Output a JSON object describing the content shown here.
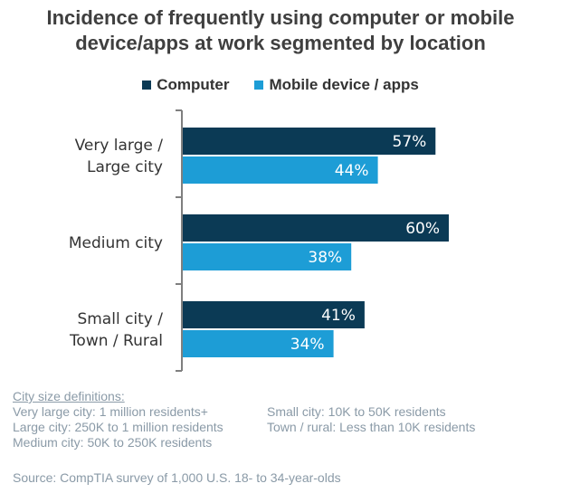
{
  "chart_data": {
    "type": "bar",
    "orientation": "horizontal",
    "title": "Incidence of frequently using computer or mobile device/apps at work segmented by location",
    "categories": [
      [
        "Very large /",
        "Large city"
      ],
      [
        "Medium city"
      ],
      [
        "Small city /",
        "Town / Rural"
      ]
    ],
    "series": [
      {
        "name": "Computer",
        "color": "#0b3a55",
        "values": [
          57,
          60,
          41
        ],
        "labels": [
          "57%",
          "60%",
          "41%"
        ]
      },
      {
        "name": "Mobile device / apps",
        "color": "#1d9dd6",
        "values": [
          44,
          38,
          34
        ],
        "labels": [
          "44%",
          "38%",
          "34%"
        ]
      }
    ],
    "xlim": [
      0,
      100
    ],
    "grid": false,
    "legend": "top"
  },
  "title_lines": [
    "Incidence of frequently using computer or mobile",
    "device/apps at work segmented by location"
  ],
  "definitions": {
    "heading": "City size definitions:",
    "items": [
      "Very large city: 1 million residents+",
      "Small city: 10K to 50K residents",
      "Large city: 250K to 1 million residents",
      "Town / rural: Less than 10K residents",
      "Medium city: 50K to 250K residents"
    ]
  },
  "source": "Source: CompTIA survey of 1,000 U.S. 18- to 34-year-olds"
}
